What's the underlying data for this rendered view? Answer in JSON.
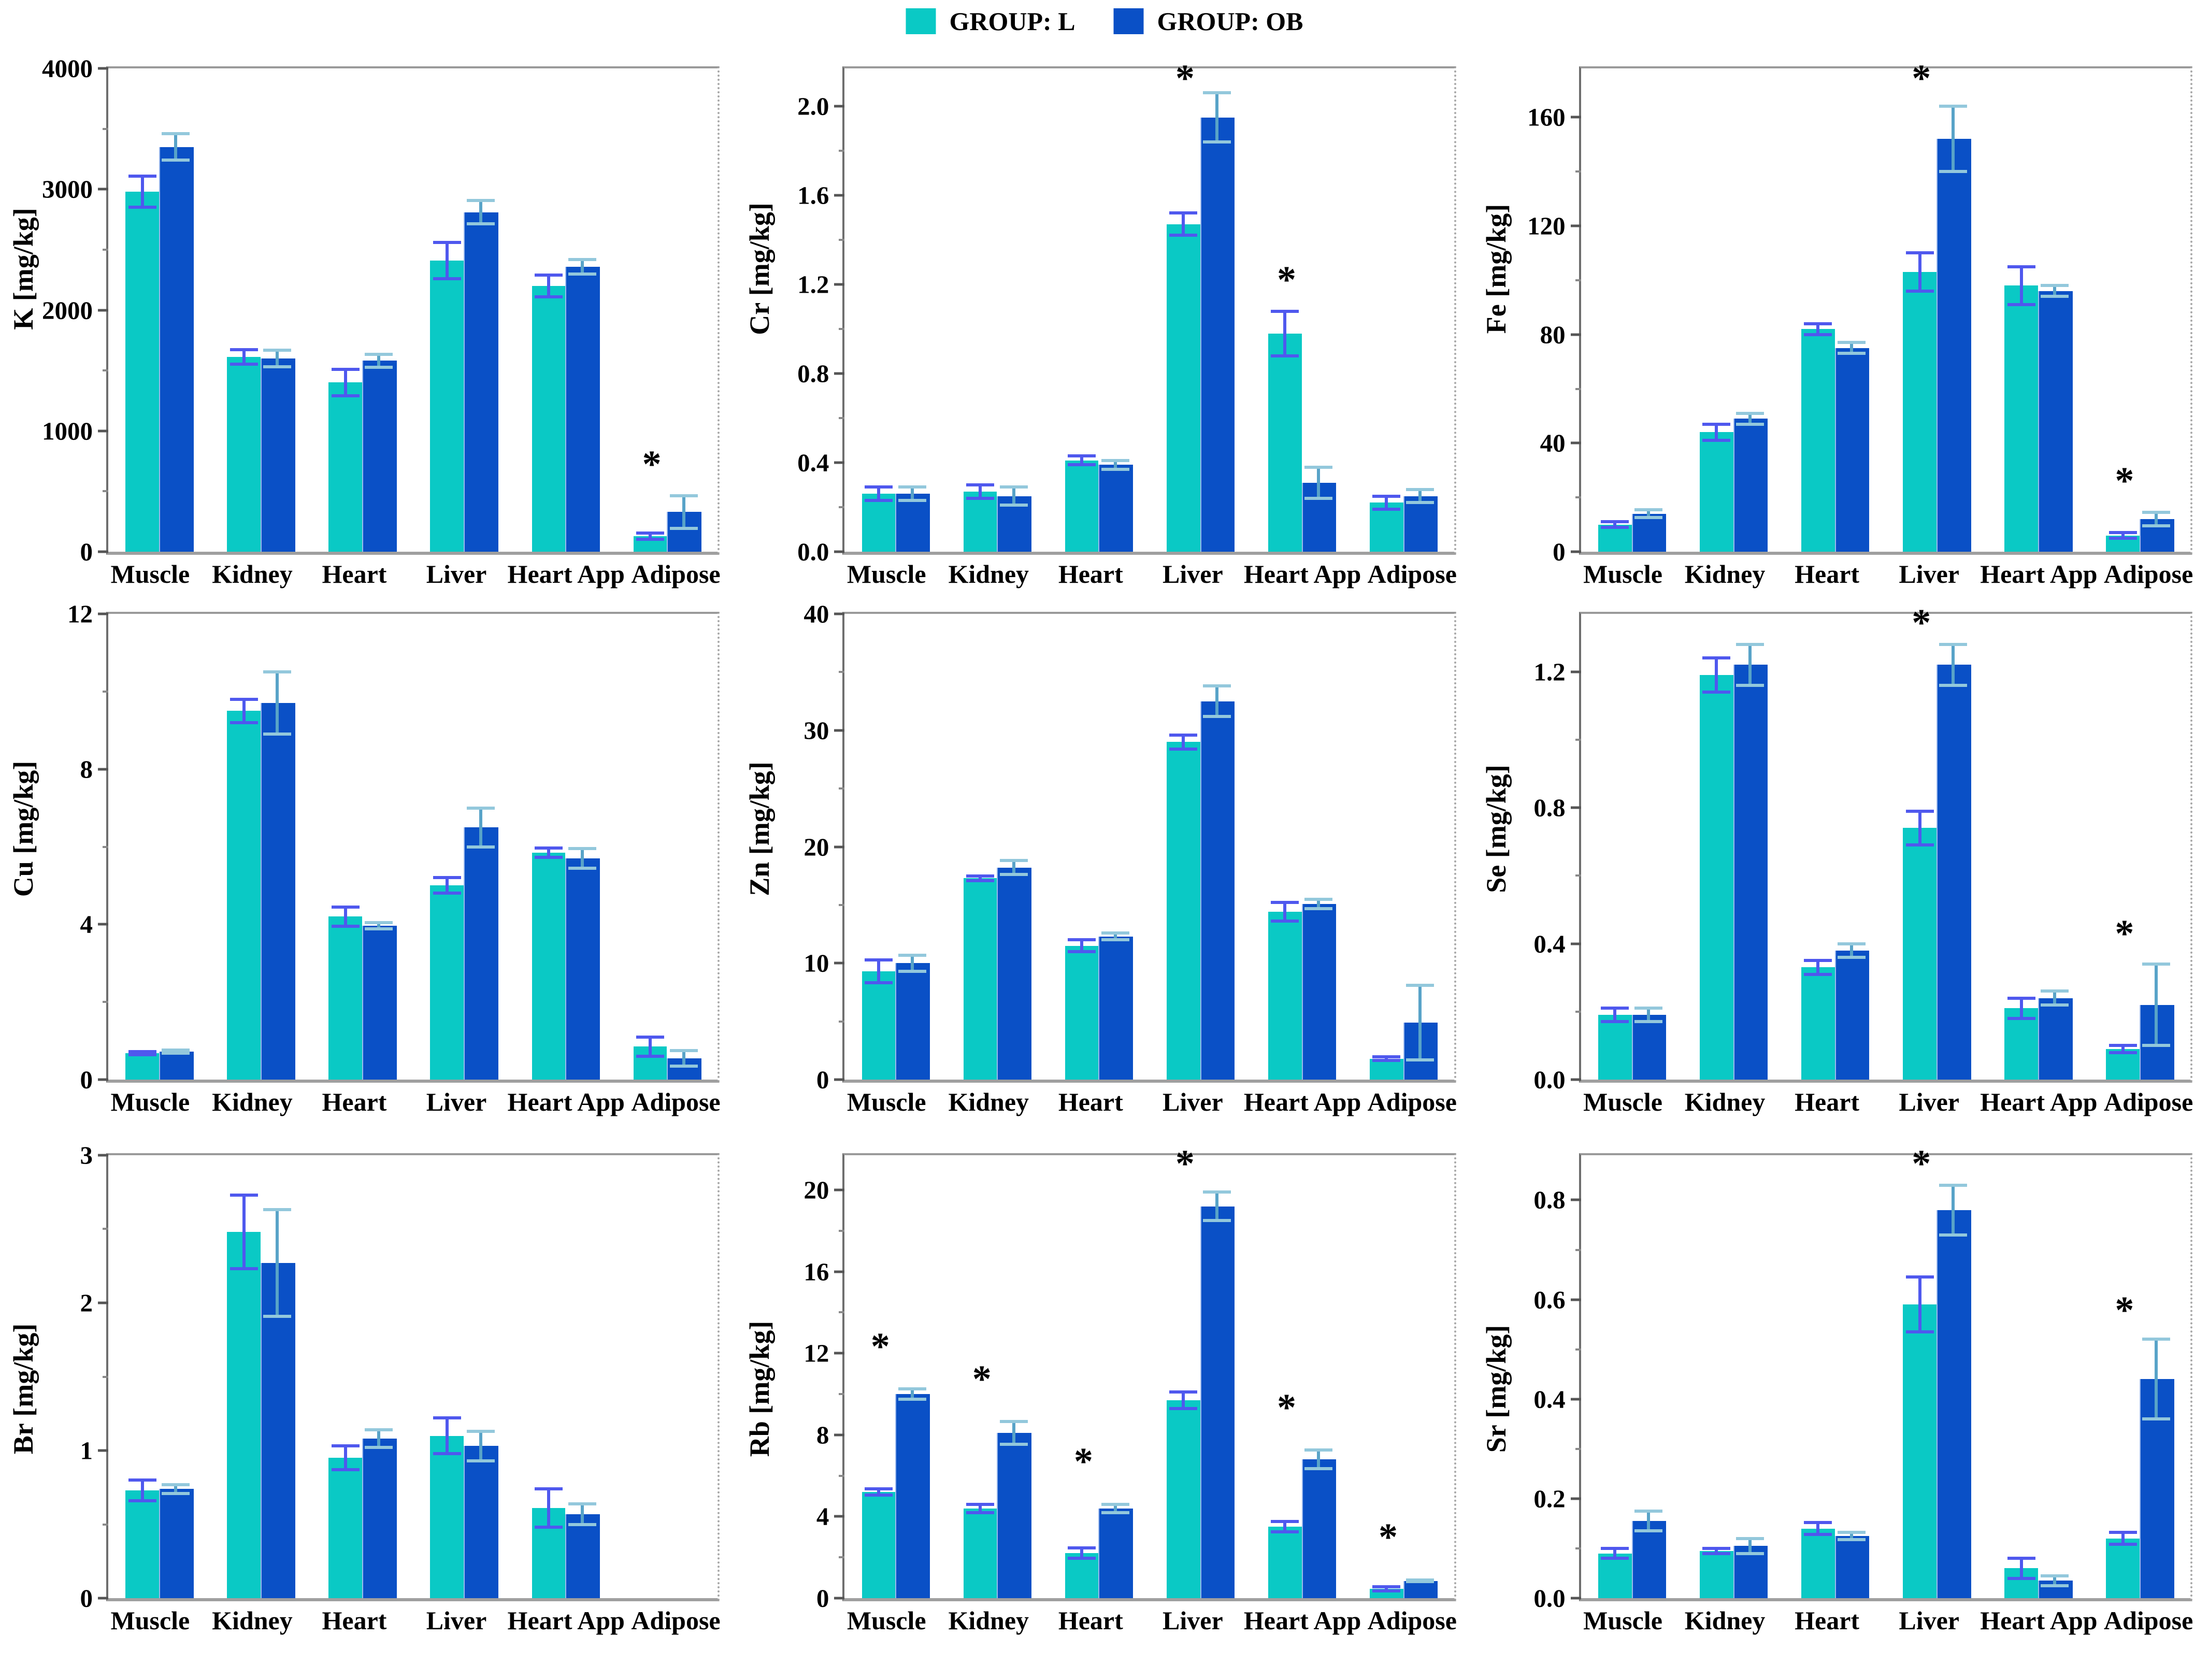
{
  "figure": {
    "background": "#ffffff",
    "layout": "3x3-bar-chart-grid"
  },
  "legend": {
    "position": "top-center",
    "items": [
      {
        "label": "GROUP: L",
        "color": "#0ac9c5"
      },
      {
        "label": "GROUP: OB",
        "color": "#0a50c6"
      }
    ]
  },
  "significance_marker": "*",
  "error_bar_colors": {
    "L": "#4f58ee",
    "OB": "#93c8dc"
  },
  "categories": [
    "Muscle",
    "Kidney",
    "Heart",
    "Liver",
    "Heart App",
    "Adipose"
  ],
  "chart_data": [
    {
      "type": "bar",
      "element": "K",
      "ylabel": "K [mg/kg]",
      "ylim": [
        0,
        4000
      ],
      "yticks": [
        0,
        1000,
        2000,
        3000,
        4000
      ],
      "ytick_labels": [
        "0",
        "1000",
        "2000",
        "3000",
        "4000"
      ],
      "series": [
        {
          "name": "GROUP: L",
          "values": [
            2980,
            1610,
            1400,
            2410,
            2200,
            130
          ],
          "errors": [
            130,
            60,
            110,
            150,
            90,
            25
          ]
        },
        {
          "name": "GROUP: OB",
          "values": [
            3350,
            1600,
            1580,
            2810,
            2360,
            330
          ],
          "errors": [
            110,
            70,
            55,
            95,
            60,
            135
          ]
        }
      ],
      "sig": [
        5
      ],
      "sig_offset": 0.05
    },
    {
      "type": "bar",
      "element": "Cr",
      "ylabel": "Cr [mg/kg]",
      "ylim": [
        0,
        2.17
      ],
      "yticks": [
        0.0,
        0.4,
        0.8,
        1.2,
        1.6,
        2.0
      ],
      "ytick_labels": [
        "0.0",
        "0.4",
        "0.8",
        "1.2",
        "1.6",
        "2.0"
      ],
      "series": [
        {
          "name": "GROUP: L",
          "values": [
            0.26,
            0.27,
            0.41,
            1.47,
            0.98,
            0.22
          ],
          "errors": [
            0.03,
            0.03,
            0.02,
            0.05,
            0.1,
            0.03
          ]
        },
        {
          "name": "GROUP: OB",
          "values": [
            0.26,
            0.25,
            0.39,
            1.95,
            0.31,
            0.25
          ],
          "errors": [
            0.03,
            0.04,
            0.02,
            0.11,
            0.07,
            0.03
          ]
        }
      ],
      "sig": [
        3,
        4
      ],
      "sig_offset": 0.05
    },
    {
      "type": "bar",
      "element": "Fe",
      "ylabel": "Fe [mg/kg]",
      "ylim": [
        0,
        178
      ],
      "yticks": [
        0,
        40,
        80,
        120,
        160
      ],
      "ytick_labels": [
        "0",
        "40",
        "80",
        "120",
        "160"
      ],
      "series": [
        {
          "name": "GROUP: L",
          "values": [
            10,
            44,
            82,
            103,
            98,
            6
          ],
          "errors": [
            1,
            3,
            2,
            7,
            7,
            1
          ]
        },
        {
          "name": "GROUP: OB",
          "values": [
            14,
            49,
            75,
            152,
            96,
            12
          ],
          "errors": [
            1.5,
            2,
            2,
            12,
            2,
            2.5
          ]
        }
      ],
      "sig": [
        3,
        5
      ],
      "sig_offset": 0.05
    },
    {
      "type": "bar",
      "element": "Cu",
      "ylabel": "Cu [mg/kg]",
      "ylim": [
        0,
        12
      ],
      "yticks": [
        0,
        4,
        8,
        12
      ],
      "ytick_labels": [
        "0",
        "4",
        "8",
        "12"
      ],
      "series": [
        {
          "name": "GROUP: L",
          "values": [
            0.68,
            9.5,
            4.2,
            5.0,
            5.85,
            0.85
          ],
          "errors": [
            0.04,
            0.3,
            0.25,
            0.2,
            0.12,
            0.25
          ]
        },
        {
          "name": "GROUP: OB",
          "values": [
            0.72,
            9.7,
            3.97,
            6.5,
            5.7,
            0.55
          ],
          "errors": [
            0.04,
            0.8,
            0.08,
            0.5,
            0.25,
            0.2
          ]
        }
      ],
      "sig": [],
      "sig_offset": 0.05
    },
    {
      "type": "bar",
      "element": "Zn",
      "ylabel": "Zn [mg/kg]",
      "ylim": [
        0,
        40
      ],
      "yticks": [
        0,
        10,
        20,
        30,
        40
      ],
      "ytick_labels": [
        "0",
        "10",
        "20",
        "30",
        "40"
      ],
      "series": [
        {
          "name": "GROUP: L",
          "values": [
            9.3,
            17.3,
            11.5,
            29.0,
            14.4,
            1.8
          ],
          "errors": [
            1.0,
            0.2,
            0.5,
            0.6,
            0.8,
            0.15
          ]
        },
        {
          "name": "GROUP: OB",
          "values": [
            10.0,
            18.2,
            12.3,
            32.5,
            15.1,
            4.9
          ],
          "errors": [
            0.7,
            0.6,
            0.3,
            1.3,
            0.4,
            3.2
          ]
        }
      ],
      "sig": [],
      "sig_offset": 0.05
    },
    {
      "type": "bar",
      "element": "Se",
      "ylabel": "Se [mg/kg]",
      "ylim": [
        0,
        1.37
      ],
      "yticks": [
        0.0,
        0.4,
        0.8,
        1.2
      ],
      "ytick_labels": [
        "0.0",
        "0.4",
        "0.8",
        "1.2"
      ],
      "series": [
        {
          "name": "GROUP: L",
          "values": [
            0.19,
            1.19,
            0.33,
            0.74,
            0.21,
            0.09
          ],
          "errors": [
            0.02,
            0.05,
            0.02,
            0.05,
            0.03,
            0.01
          ]
        },
        {
          "name": "GROUP: OB",
          "values": [
            0.19,
            1.22,
            0.38,
            1.22,
            0.24,
            0.22
          ],
          "errors": [
            0.02,
            0.06,
            0.02,
            0.06,
            0.02,
            0.12
          ]
        }
      ],
      "sig": [
        3,
        5
      ],
      "sig_offset": 0.05
    },
    {
      "type": "bar",
      "element": "Br",
      "ylabel": "Br [mg/kg]",
      "ylim": [
        0,
        3
      ],
      "yticks": [
        0,
        1,
        2,
        3
      ],
      "ytick_labels": [
        "0",
        "1",
        "2",
        "3"
      ],
      "series": [
        {
          "name": "GROUP: L",
          "values": [
            0.73,
            2.48,
            0.95,
            1.1,
            0.61,
            null
          ],
          "errors": [
            0.07,
            0.25,
            0.08,
            0.12,
            0.13,
            null
          ]
        },
        {
          "name": "GROUP: OB",
          "values": [
            0.74,
            2.27,
            1.08,
            1.03,
            0.57,
            null
          ],
          "errors": [
            0.03,
            0.36,
            0.06,
            0.1,
            0.07,
            null
          ]
        }
      ],
      "sig": [],
      "sig_offset": 0.05
    },
    {
      "type": "bar",
      "element": "Rb",
      "ylabel": "Rb [mg/kg]",
      "ylim": [
        0,
        21.7
      ],
      "yticks": [
        0,
        4,
        8,
        12,
        16,
        20
      ],
      "ytick_labels": [
        "0",
        "4",
        "8",
        "12",
        "16",
        "20"
      ],
      "series": [
        {
          "name": "GROUP: L",
          "values": [
            5.2,
            4.4,
            2.2,
            9.7,
            3.5,
            0.45
          ],
          "errors": [
            0.15,
            0.2,
            0.25,
            0.4,
            0.25,
            0.1
          ]
        },
        {
          "name": "GROUP: OB",
          "values": [
            10.0,
            8.1,
            4.4,
            19.2,
            6.8,
            0.85
          ],
          "errors": [
            0.25,
            0.55,
            0.2,
            0.7,
            0.45,
            0.05
          ]
        }
      ],
      "sig": [
        0,
        1,
        2,
        3,
        4,
        5
      ],
      "sig_offset": 0.08
    },
    {
      "type": "bar",
      "element": "Sr",
      "ylabel": "Sr [mg/kg]",
      "ylim": [
        0,
        0.89
      ],
      "yticks": [
        0.0,
        0.2,
        0.4,
        0.6,
        0.8
      ],
      "ytick_labels": [
        "0.0",
        "0.2",
        "0.4",
        "0.6",
        "0.8"
      ],
      "series": [
        {
          "name": "GROUP: L",
          "values": [
            0.09,
            0.095,
            0.14,
            0.59,
            0.06,
            0.12
          ],
          "errors": [
            0.01,
            0.005,
            0.012,
            0.055,
            0.02,
            0.012
          ]
        },
        {
          "name": "GROUP: OB",
          "values": [
            0.155,
            0.105,
            0.125,
            0.78,
            0.035,
            0.44
          ],
          "errors": [
            0.02,
            0.015,
            0.007,
            0.05,
            0.01,
            0.08
          ]
        }
      ],
      "sig": [
        3,
        5
      ],
      "sig_offset": 0.05
    }
  ]
}
